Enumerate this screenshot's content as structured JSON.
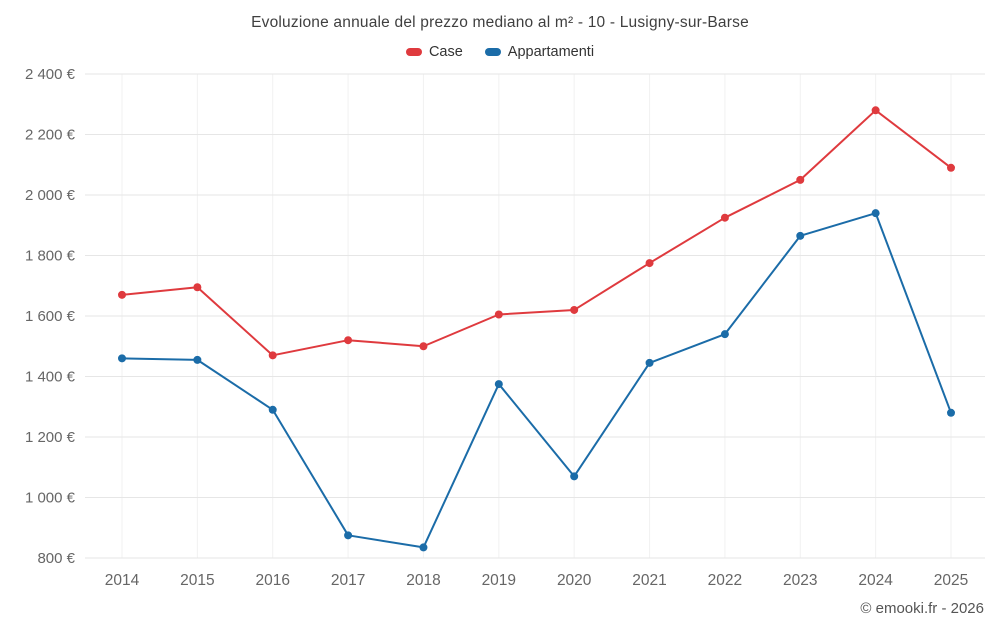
{
  "chart_data": {
    "type": "line",
    "title": "Evoluzione annuale del prezzo mediano al m² - 10 - Lusigny-sur-Barse",
    "categories": [
      "2014",
      "2015",
      "2016",
      "2017",
      "2018",
      "2019",
      "2020",
      "2021",
      "2022",
      "2023",
      "2024",
      "2025"
    ],
    "series": [
      {
        "name": "Case",
        "color": "#df3a3e",
        "values": [
          1670,
          1695,
          1470,
          1520,
          1500,
          1605,
          1620,
          1775,
          1925,
          2050,
          2280,
          2090
        ]
      },
      {
        "name": "Appartamenti",
        "color": "#1b6ca8",
        "values": [
          1460,
          1455,
          1290,
          875,
          835,
          1375,
          1070,
          1445,
          1540,
          1865,
          1940,
          1280
        ]
      }
    ],
    "ylim": [
      800,
      2400
    ],
    "yticks": [
      {
        "value": 800,
        "label": "800 €"
      },
      {
        "value": 1000,
        "label": "1 000 €"
      },
      {
        "value": 1200,
        "label": "1 200 €"
      },
      {
        "value": 1400,
        "label": "1 400 €"
      },
      {
        "value": 1600,
        "label": "1 600 €"
      },
      {
        "value": 1800,
        "label": "1 800 €"
      },
      {
        "value": 2000,
        "label": "2 000 €"
      },
      {
        "value": 2200,
        "label": "2 200 €"
      },
      {
        "value": 2400,
        "label": "2 400 €"
      }
    ],
    "grid": true,
    "legend_position": "top",
    "xlabel": "",
    "ylabel": ""
  },
  "footer": {
    "text": "© emooki.fr - 2026"
  }
}
